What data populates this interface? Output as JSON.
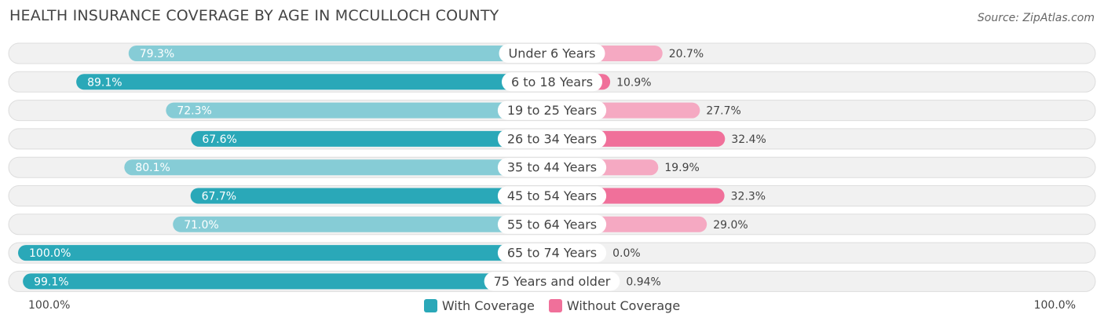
{
  "header": {
    "title": "HEALTH INSURANCE COVERAGE BY AGE IN MCCULLOCH COUNTY",
    "source": "Source: ZipAtlas.com"
  },
  "axis": {
    "left_label": "100.0%",
    "right_label": "100.0%"
  },
  "legend": {
    "with_label": "With Coverage",
    "without_label": "Without Coverage"
  },
  "colors": {
    "with_strong": "#2aa8b8",
    "with_light": "#86ccd6",
    "without_strong": "#f0709a",
    "without_light": "#f5a9c2",
    "track": "#f1f1f1",
    "track_border": "#dddddd"
  },
  "chart_data": {
    "type": "bar",
    "orientation": "horizontal-diverging",
    "title": "HEALTH INSURANCE COVERAGE BY AGE IN MCCULLOCH COUNTY",
    "categories": [
      "Under 6 Years",
      "6 to 18 Years",
      "19 to 25 Years",
      "26 to 34 Years",
      "35 to 44 Years",
      "45 to 54 Years",
      "55 to 64 Years",
      "65 to 74 Years",
      "75 Years and older"
    ],
    "series": [
      {
        "name": "With Coverage",
        "values": [
          79.3,
          89.1,
          72.3,
          67.6,
          80.1,
          67.7,
          71.0,
          100.0,
          99.1
        ],
        "labels": [
          "79.3%",
          "89.1%",
          "72.3%",
          "67.6%",
          "80.1%",
          "67.7%",
          "71.0%",
          "100.0%",
          "99.1%"
        ]
      },
      {
        "name": "Without Coverage",
        "values": [
          20.7,
          10.9,
          27.7,
          32.4,
          19.9,
          32.3,
          29.0,
          0.0,
          0.94
        ],
        "labels": [
          "20.7%",
          "10.9%",
          "27.7%",
          "32.4%",
          "19.9%",
          "32.3%",
          "29.0%",
          "0.0%",
          "0.94%"
        ]
      }
    ],
    "xlim": [
      0,
      100
    ],
    "legend_position": "bottom-center"
  }
}
